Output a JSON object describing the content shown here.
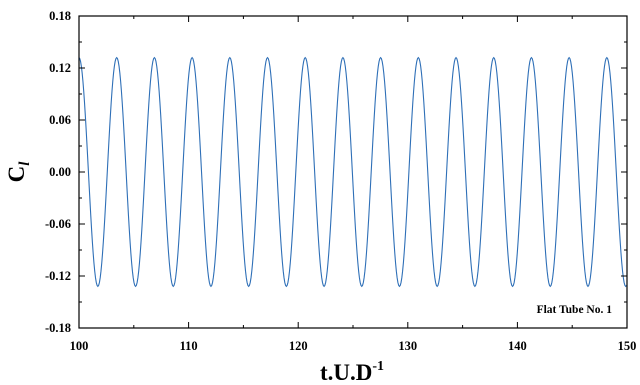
{
  "chart_data": {
    "type": "line",
    "xlabel": "t.U.D",
    "xlabel_superscript": "-1",
    "ylabel": "C",
    "ylabel_subscript": "l",
    "xlim": [
      100,
      150
    ],
    "ylim": [
      -0.18,
      0.18
    ],
    "xticks": [
      "100",
      "110",
      "120",
      "130",
      "140",
      "150"
    ],
    "yticks": [
      "0.18",
      "0.12",
      "0.06",
      "0.00",
      "-0.06",
      "-0.12",
      "-0.18"
    ],
    "annotation": "Flat Tube No. 1",
    "grid": false,
    "line_color": "#2e6fb7",
    "series": [
      {
        "x": [
          100.0,
          101.72,
          103.44,
          105.16,
          106.88,
          108.6,
          110.32,
          112.04,
          113.76,
          115.48,
          117.2,
          118.92,
          120.64,
          122.36,
          124.08,
          125.8,
          127.52,
          129.24,
          130.96,
          132.68,
          134.4,
          136.12,
          137.84,
          139.56,
          141.28,
          143.0,
          144.72,
          146.44,
          148.16,
          149.88
        ],
        "values": [
          0.132,
          -0.132,
          0.132,
          -0.132,
          0.132,
          -0.132,
          0.132,
          -0.132,
          0.132,
          -0.132,
          0.132,
          -0.132,
          0.132,
          -0.132,
          0.132,
          -0.132,
          0.132,
          -0.132,
          0.132,
          -0.132,
          0.132,
          -0.132,
          0.132,
          -0.132,
          0.132,
          -0.132,
          0.132,
          -0.132,
          0.132,
          -0.132
        ]
      }
    ]
  }
}
